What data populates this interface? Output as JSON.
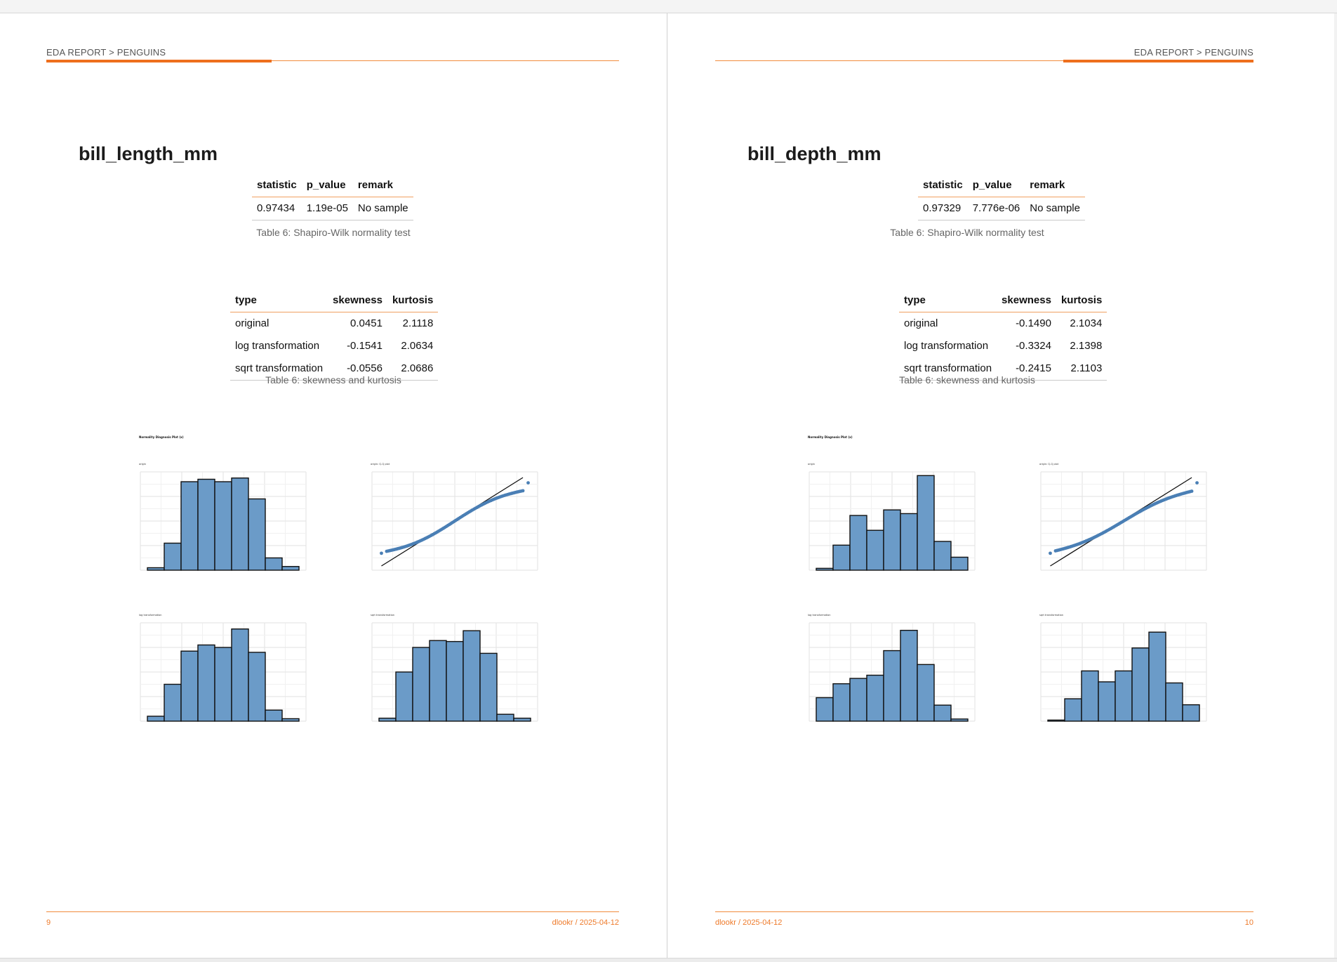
{
  "pages": [
    {
      "side": "left",
      "header": "EDA REPORT > PENGUINS",
      "variable": "bill_length_mm",
      "normality": {
        "columns": [
          "statistic",
          "p_value",
          "remark"
        ],
        "row": [
          "0.97434",
          "1.19e-05",
          "No sample"
        ],
        "caption": "Table 6: Shapiro-Wilk normality test"
      },
      "skew": {
        "columns": [
          "type",
          "skewness",
          "kurtosis"
        ],
        "rows": [
          [
            "original",
            "0.0451",
            "2.1118"
          ],
          [
            "log transformation",
            "-0.1541",
            "2.0634"
          ],
          [
            "sqrt transformation",
            "-0.0556",
            "2.0686"
          ]
        ],
        "caption": "Table 6: skewness and kurtosis"
      },
      "figure": {
        "title": "Normality Diagnosis Plot (x)",
        "panels": [
          {
            "title": "origin",
            "kind": "hist",
            "values": [
              2,
              22,
              72,
              74,
              72,
              75,
              58,
              10,
              3
            ],
            "ymax": 80
          },
          {
            "title": "origin: Q-Q plot",
            "kind": "qq"
          },
          {
            "title": "log transformation",
            "kind": "hist",
            "values": [
              4,
              30,
              57,
              62,
              60,
              75,
              56,
              9,
              2
            ],
            "ymax": 80
          },
          {
            "title": "sqrt transformation",
            "kind": "hist",
            "values": [
              3,
              50,
              75,
              82,
              81,
              92,
              69,
              7,
              3
            ],
            "ymax": 100
          }
        ]
      },
      "footer": {
        "page": "9",
        "stamp": "dlookr / 2025-04-12"
      }
    },
    {
      "side": "right",
      "header": "EDA REPORT > PENGUINS",
      "variable": "bill_depth_mm",
      "normality": {
        "columns": [
          "statistic",
          "p_value",
          "remark"
        ],
        "row": [
          "0.97329",
          "7.776e-06",
          "No sample"
        ],
        "caption": "Table 6: Shapiro-Wilk normality test"
      },
      "skew": {
        "columns": [
          "type",
          "skewness",
          "kurtosis"
        ],
        "rows": [
          [
            "original",
            "-0.1490",
            "2.1034"
          ],
          [
            "log transformation",
            "-0.3324",
            "2.1398"
          ],
          [
            "sqrt transformation",
            "-0.2415",
            "2.1103"
          ]
        ],
        "caption": "Table 6: skewness and kurtosis"
      },
      "figure": {
        "title": "Normality Diagnosis Plot (x)",
        "panels": [
          {
            "title": "origin",
            "kind": "hist",
            "values": [
              2,
              27,
              59,
              43,
              65,
              61,
              102,
              31,
              14
            ],
            "ymax": 106
          },
          {
            "title": "origin: Q-Q plot",
            "kind": "qq"
          },
          {
            "title": "log transformation",
            "kind": "hist",
            "values": [
              22,
              35,
              40,
              43,
              66,
              85,
              53,
              15,
              2
            ],
            "ymax": 92
          },
          {
            "title": "sqrt transformation",
            "kind": "hist",
            "values": [
              2,
              41,
              92,
              72,
              92,
              134,
              163,
              70,
              30
            ],
            "ymax": 180
          }
        ]
      },
      "footer": {
        "page": "10",
        "stamp": "dlookr / 2025-04-12"
      }
    }
  ],
  "colors": {
    "accent": "#ee6f1d",
    "bar": "#6b9bc8",
    "point": "#4a7fb5"
  }
}
